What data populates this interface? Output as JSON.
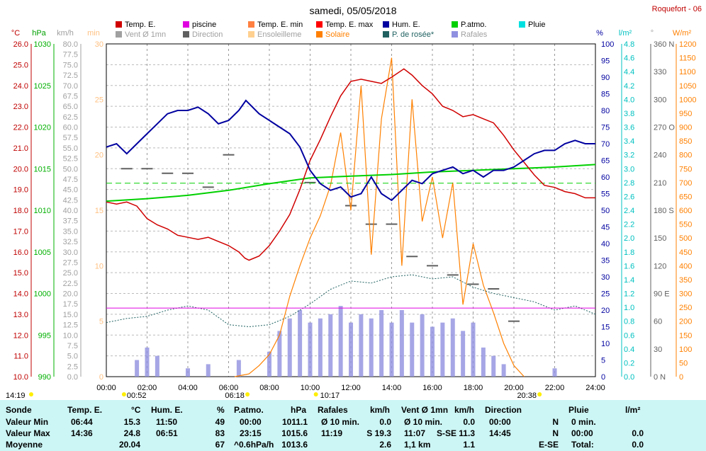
{
  "header": {
    "title": "samedi, 05/05/2018",
    "station": "Roquefort - 06"
  },
  "legend": [
    {
      "label": "Temp. E.",
      "color": "#d00000"
    },
    {
      "label": "piscine",
      "color": "#e000e0"
    },
    {
      "label": "Temp. E. min",
      "color": "#ff8040"
    },
    {
      "label": "Temp. E. max",
      "color": "#ff0000"
    },
    {
      "label": "Hum. E.",
      "color": "#0000a0"
    },
    {
      "label": "P.atmo.",
      "color": "#00d000"
    },
    {
      "label": "Pluie",
      "color": "#00e0e0"
    },
    {
      "label": "Vent Ø 1mn",
      "color": "#a0a0a0"
    },
    {
      "label": "Direction",
      "color": "#606060"
    },
    {
      "label": "Ensoleilleme",
      "color": "#ffd090"
    },
    {
      "label": "Solaire",
      "color": "#ff8000"
    },
    {
      "label": "P. de rosée*",
      "color": "#206060"
    },
    {
      "label": "Rafales",
      "color": "#9090e0"
    }
  ],
  "axis_units": {
    "temp": "°C",
    "press": "hPa",
    "wind": "km/h",
    "min": "min",
    "hum": "%",
    "rain": "l/m²",
    "dir": "°",
    "solar": "W/m²"
  },
  "axis_labels": {
    "temp": [
      "26.0",
      "25.0",
      "24.0",
      "23.0",
      "22.0",
      "21.0",
      "20.0",
      "19.0",
      "18.0",
      "17.0",
      "16.0",
      "15.0",
      "14.0",
      "13.0",
      "12.0",
      "11.0",
      "10.0"
    ],
    "press": [
      "1030",
      "1025",
      "1020",
      "1015",
      "1010",
      "1005",
      "1000",
      "995",
      "990"
    ],
    "wind": [
      "80.0",
      "77.5",
      "75.0",
      "72.5",
      "70.0",
      "67.5",
      "65.0",
      "62.5",
      "60.0",
      "57.5",
      "55.0",
      "52.5",
      "50.0",
      "47.5",
      "45.0",
      "42.5",
      "40.0",
      "37.5",
      "35.0",
      "32.5",
      "30.0",
      "27.5",
      "25.0",
      "22.5",
      "20.0",
      "17.5",
      "15.0",
      "12.5",
      "10.0",
      "7.5",
      "5.0",
      "2.5",
      "0.0"
    ],
    "minutes": [
      "30",
      "25",
      "20",
      "15",
      "10",
      "5",
      "0"
    ],
    "hum": [
      "100",
      "95",
      "90",
      "85",
      "80",
      "75",
      "70",
      "65",
      "60",
      "55",
      "50",
      "45",
      "40",
      "35",
      "30",
      "25",
      "20",
      "15",
      "10",
      "5",
      "0"
    ],
    "rain": [
      "4.8",
      "4.6",
      "4.4",
      "4.2",
      "4.0",
      "3.8",
      "3.6",
      "3.4",
      "3.2",
      "3.0",
      "2.8",
      "2.6",
      "2.4",
      "2.2",
      "2.0",
      "1.8",
      "1.6",
      "1.4",
      "1.2",
      "1.0",
      "0.8",
      "0.6",
      "0.4",
      "0.2",
      "0.0"
    ],
    "dir": [
      "360 N",
      "330",
      "300",
      "270 O",
      "240",
      "210",
      "180 S",
      "150",
      "120",
      "90 E",
      "60",
      "30",
      "0 N"
    ],
    "solar": [
      "1200",
      "1150",
      "1100",
      "1050",
      "1000",
      "950",
      "900",
      "850",
      "800",
      "750",
      "700",
      "650",
      "600",
      "550",
      "500",
      "450",
      "400",
      "350",
      "300",
      "250",
      "200",
      "150",
      "100",
      "50",
      "0"
    ],
    "time": [
      "00:00",
      "02:00",
      "04:00",
      "06:00",
      "08:00",
      "10:00",
      "12:00",
      "14:00",
      "16:00",
      "18:00",
      "20:00",
      "22:00",
      "24:00"
    ]
  },
  "markers": {
    "sunrise": "06:18",
    "sunset": "20:38",
    "moonrise": "00:52",
    "solar_noon": "10:17",
    "left_time": "14:19"
  },
  "chart_data": {
    "type": "line",
    "x_unit": "hour",
    "xlim": [
      0,
      24
    ],
    "series": [
      {
        "name": "Temp. E.",
        "unit": "°C",
        "ylim": [
          10,
          26
        ],
        "points": [
          [
            0,
            18.4
          ],
          [
            0.5,
            18.3
          ],
          [
            1,
            18.4
          ],
          [
            1.5,
            18.2
          ],
          [
            2,
            17.6
          ],
          [
            2.5,
            17.3
          ],
          [
            3,
            17.1
          ],
          [
            3.5,
            16.8
          ],
          [
            4,
            16.7
          ],
          [
            4.5,
            16.6
          ],
          [
            5,
            16.7
          ],
          [
            5.5,
            16.5
          ],
          [
            6,
            16.3
          ],
          [
            6.5,
            16
          ],
          [
            6.8,
            15.7
          ],
          [
            7,
            15.6
          ],
          [
            7.5,
            15.8
          ],
          [
            8,
            16.3
          ],
          [
            8.5,
            17
          ],
          [
            9,
            17.8
          ],
          [
            9.5,
            19
          ],
          [
            10,
            20.4
          ],
          [
            10.5,
            21.4
          ],
          [
            11,
            22.5
          ],
          [
            11.5,
            23.5
          ],
          [
            12,
            24.2
          ],
          [
            12.5,
            24.3
          ],
          [
            13,
            24.2
          ],
          [
            13.5,
            24.1
          ],
          [
            14,
            24.4
          ],
          [
            14.6,
            24.8
          ],
          [
            15,
            24.5
          ],
          [
            15.5,
            24.0
          ],
          [
            16,
            23.6
          ],
          [
            16.5,
            23.0
          ],
          [
            17,
            22.8
          ],
          [
            17.5,
            22.5
          ],
          [
            18,
            22.6
          ],
          [
            18.5,
            22.4
          ],
          [
            19,
            22.2
          ],
          [
            19.5,
            21.6
          ],
          [
            20,
            20.9
          ],
          [
            20.5,
            20.3
          ],
          [
            21,
            19.7
          ],
          [
            21.5,
            19.2
          ],
          [
            22,
            19.1
          ],
          [
            22.5,
            18.9
          ],
          [
            23,
            18.8
          ],
          [
            23.5,
            18.6
          ],
          [
            24,
            18.6
          ]
        ]
      },
      {
        "name": "Hum. E.",
        "unit": "%",
        "ylim": [
          0,
          100
        ],
        "points": [
          [
            0,
            69
          ],
          [
            0.5,
            70
          ],
          [
            1,
            67
          ],
          [
            1.5,
            70
          ],
          [
            2,
            73
          ],
          [
            2.5,
            76
          ],
          [
            3,
            79
          ],
          [
            3.5,
            80
          ],
          [
            4,
            80
          ],
          [
            4.5,
            81
          ],
          [
            5,
            79
          ],
          [
            5.5,
            76
          ],
          [
            6,
            77
          ],
          [
            6.5,
            80
          ],
          [
            6.85,
            83
          ],
          [
            7.5,
            79
          ],
          [
            8,
            77
          ],
          [
            8.5,
            75
          ],
          [
            9,
            73
          ],
          [
            9.5,
            69
          ],
          [
            10,
            62
          ],
          [
            10.5,
            58
          ],
          [
            11,
            56
          ],
          [
            11.5,
            57
          ],
          [
            12,
            54
          ],
          [
            12.5,
            55
          ],
          [
            13,
            60
          ],
          [
            13.5,
            55
          ],
          [
            14,
            53
          ],
          [
            14.5,
            56
          ],
          [
            15,
            59
          ],
          [
            15.5,
            58
          ],
          [
            16,
            61
          ],
          [
            16.5,
            62
          ],
          [
            17,
            63
          ],
          [
            17.5,
            61
          ],
          [
            18,
            62
          ],
          [
            18.5,
            60
          ],
          [
            19,
            62
          ],
          [
            19.5,
            62
          ],
          [
            20,
            63
          ],
          [
            20.5,
            65
          ],
          [
            21,
            67
          ],
          [
            21.5,
            68
          ],
          [
            22,
            68
          ],
          [
            22.5,
            70
          ],
          [
            23,
            71
          ],
          [
            23.5,
            70
          ],
          [
            24,
            70
          ]
        ]
      },
      {
        "name": "P.atmo.",
        "unit": "hPa",
        "ylim": [
          990,
          1030
        ],
        "points": [
          [
            0,
            1011.1
          ],
          [
            2,
            1011.4
          ],
          [
            4,
            1011.8
          ],
          [
            6,
            1012.4
          ],
          [
            8,
            1013.2
          ],
          [
            10,
            1013.9
          ],
          [
            12,
            1014.1
          ],
          [
            14,
            1014.3
          ],
          [
            16,
            1014.6
          ],
          [
            18,
            1014.8
          ],
          [
            20,
            1015.0
          ],
          [
            22,
            1015.2
          ],
          [
            24,
            1015.5
          ]
        ]
      },
      {
        "name": "Solaire",
        "unit": "W/m²",
        "ylim": [
          0,
          1200
        ],
        "points": [
          [
            6.3,
            0
          ],
          [
            7,
            10
          ],
          [
            7.5,
            40
          ],
          [
            8,
            80
          ],
          [
            8.5,
            150
          ],
          [
            9,
            290
          ],
          [
            9.5,
            400
          ],
          [
            10,
            500
          ],
          [
            10.5,
            580
          ],
          [
            11,
            690
          ],
          [
            11.5,
            880
          ],
          [
            12,
            600
          ],
          [
            12.5,
            1050
          ],
          [
            13,
            440
          ],
          [
            13.5,
            930
          ],
          [
            14,
            1150
          ],
          [
            14.5,
            400
          ],
          [
            15,
            1000
          ],
          [
            15.5,
            560
          ],
          [
            16,
            720
          ],
          [
            16.5,
            500
          ],
          [
            17,
            700
          ],
          [
            17.5,
            260
          ],
          [
            18,
            480
          ],
          [
            18.5,
            330
          ],
          [
            19,
            230
          ],
          [
            19.5,
            120
          ],
          [
            20,
            40
          ],
          [
            20.5,
            0
          ]
        ]
      },
      {
        "name": "P. de rosée*",
        "unit": "°C",
        "ylim": [
          10,
          26
        ],
        "points": [
          [
            0,
            12.6
          ],
          [
            1,
            12.8
          ],
          [
            2,
            12.9
          ],
          [
            3,
            13.2
          ],
          [
            4,
            13.4
          ],
          [
            5,
            13.2
          ],
          [
            6,
            12.5
          ],
          [
            7,
            12.4
          ],
          [
            8,
            12.5
          ],
          [
            9,
            12.9
          ],
          [
            10,
            13.5
          ],
          [
            11,
            14.2
          ],
          [
            12,
            14.6
          ],
          [
            13,
            14.5
          ],
          [
            14,
            14.8
          ],
          [
            15,
            14.9
          ],
          [
            16,
            14.7
          ],
          [
            17,
            14.8
          ],
          [
            18,
            14.3
          ],
          [
            19,
            14.0
          ],
          [
            20,
            13.8
          ],
          [
            21,
            13.6
          ],
          [
            22,
            13.2
          ],
          [
            23,
            13.4
          ],
          [
            24,
            13.0
          ]
        ]
      },
      {
        "name": "piscine",
        "unit": "°C",
        "ylim": [
          10,
          26
        ],
        "points": [
          [
            0,
            13.3
          ],
          [
            24,
            13.3
          ]
        ]
      },
      {
        "name": "Temp. E. max",
        "unit": "°C",
        "ylim": [
          10,
          26
        ],
        "points": [
          [
            0,
            19.3
          ],
          [
            24,
            19.3
          ]
        ]
      },
      {
        "name": "Rafales",
        "unit": "km/h",
        "ylim": [
          0,
          80
        ],
        "points": [
          [
            1.5,
            4
          ],
          [
            2,
            7
          ],
          [
            2.5,
            5
          ],
          [
            4,
            2
          ],
          [
            5,
            3
          ],
          [
            6.5,
            4
          ],
          [
            8,
            6
          ],
          [
            8.5,
            11
          ],
          [
            9,
            14
          ],
          [
            9.5,
            16
          ],
          [
            10,
            13
          ],
          [
            10.5,
            14
          ],
          [
            11,
            15
          ],
          [
            11.5,
            17
          ],
          [
            12,
            13
          ],
          [
            12.5,
            15
          ],
          [
            13,
            14
          ],
          [
            13.5,
            16
          ],
          [
            14,
            13
          ],
          [
            14.5,
            16
          ],
          [
            15,
            13
          ],
          [
            15.5,
            15
          ],
          [
            16,
            12
          ],
          [
            16.5,
            13
          ],
          [
            17,
            14
          ],
          [
            17.5,
            11
          ],
          [
            18,
            13
          ],
          [
            18.5,
            7
          ],
          [
            19,
            5
          ],
          [
            19.5,
            3
          ],
          [
            22,
            2
          ]
        ]
      },
      {
        "name": "Direction",
        "unit": "°",
        "ylim": [
          0,
          360
        ],
        "points": [
          [
            1,
            225
          ],
          [
            2,
            225
          ],
          [
            3,
            220
          ],
          [
            4,
            220
          ],
          [
            5,
            205
          ],
          [
            6,
            240
          ],
          [
            10,
            210
          ],
          [
            12,
            185
          ],
          [
            13,
            165
          ],
          [
            14,
            165
          ],
          [
            15,
            130
          ],
          [
            16,
            120
          ],
          [
            17,
            110
          ],
          [
            18,
            100
          ],
          [
            19,
            95
          ],
          [
            20,
            60
          ]
        ]
      }
    ]
  },
  "table": {
    "headers": {
      "sonde": "Sonde",
      "temp": "Temp. E.",
      "temp_unit": "°C",
      "hum": "Hum. E.",
      "hum_unit": "%",
      "press": "P.atmo.",
      "press_unit": "hPa",
      "gust": "Rafales",
      "gust_unit": "km/h",
      "wind": "Vent Ø 1mn",
      "wind_unit": "km/h",
      "dir": "Direction",
      "rain": "Pluie",
      "rain_unit": "l/m²"
    },
    "rows": [
      {
        "label": "Valeur Min",
        "temp_time": "06:44",
        "temp_val": "15.3",
        "hum_time": "11:50",
        "hum_val": "49",
        "press_time": "00:00",
        "press_val": "1011.1",
        "gust_time": "Ø 10 min.",
        "gust_val": "0.0",
        "wind_time": "Ø 10 min.",
        "wind_val": "0.0",
        "dir_time": "00:00",
        "dir_val": "N",
        "rain_time": "0 min.",
        "rain_val": ""
      },
      {
        "label": "Valeur Max",
        "temp_time": "14:36",
        "temp_val": "24.8",
        "hum_time": "06:51",
        "hum_val": "83",
        "press_time": "23:15",
        "press_val": "1015.6",
        "gust_time": "11:19",
        "gust_val": "S 19.3",
        "wind_time": "11:07",
        "wind_val": "S-SE 11.3",
        "dir_time": "14:45",
        "dir_val": "N",
        "rain_time": "00:00",
        "rain_val": "0.0"
      },
      {
        "label": "Moyenne",
        "temp_time": "",
        "temp_val": "20.04",
        "hum_time": "",
        "hum_val": "67",
        "press_time": "^0.6hPa/h",
        "press_val": "1013.6",
        "gust_time": "",
        "gust_val": "2.6",
        "wind_time": "1,1 km",
        "wind_val": "1.1",
        "dir_time": "",
        "dir_val": "E-SE",
        "rain_time": "Total:",
        "rain_val": "0.0"
      }
    ]
  }
}
